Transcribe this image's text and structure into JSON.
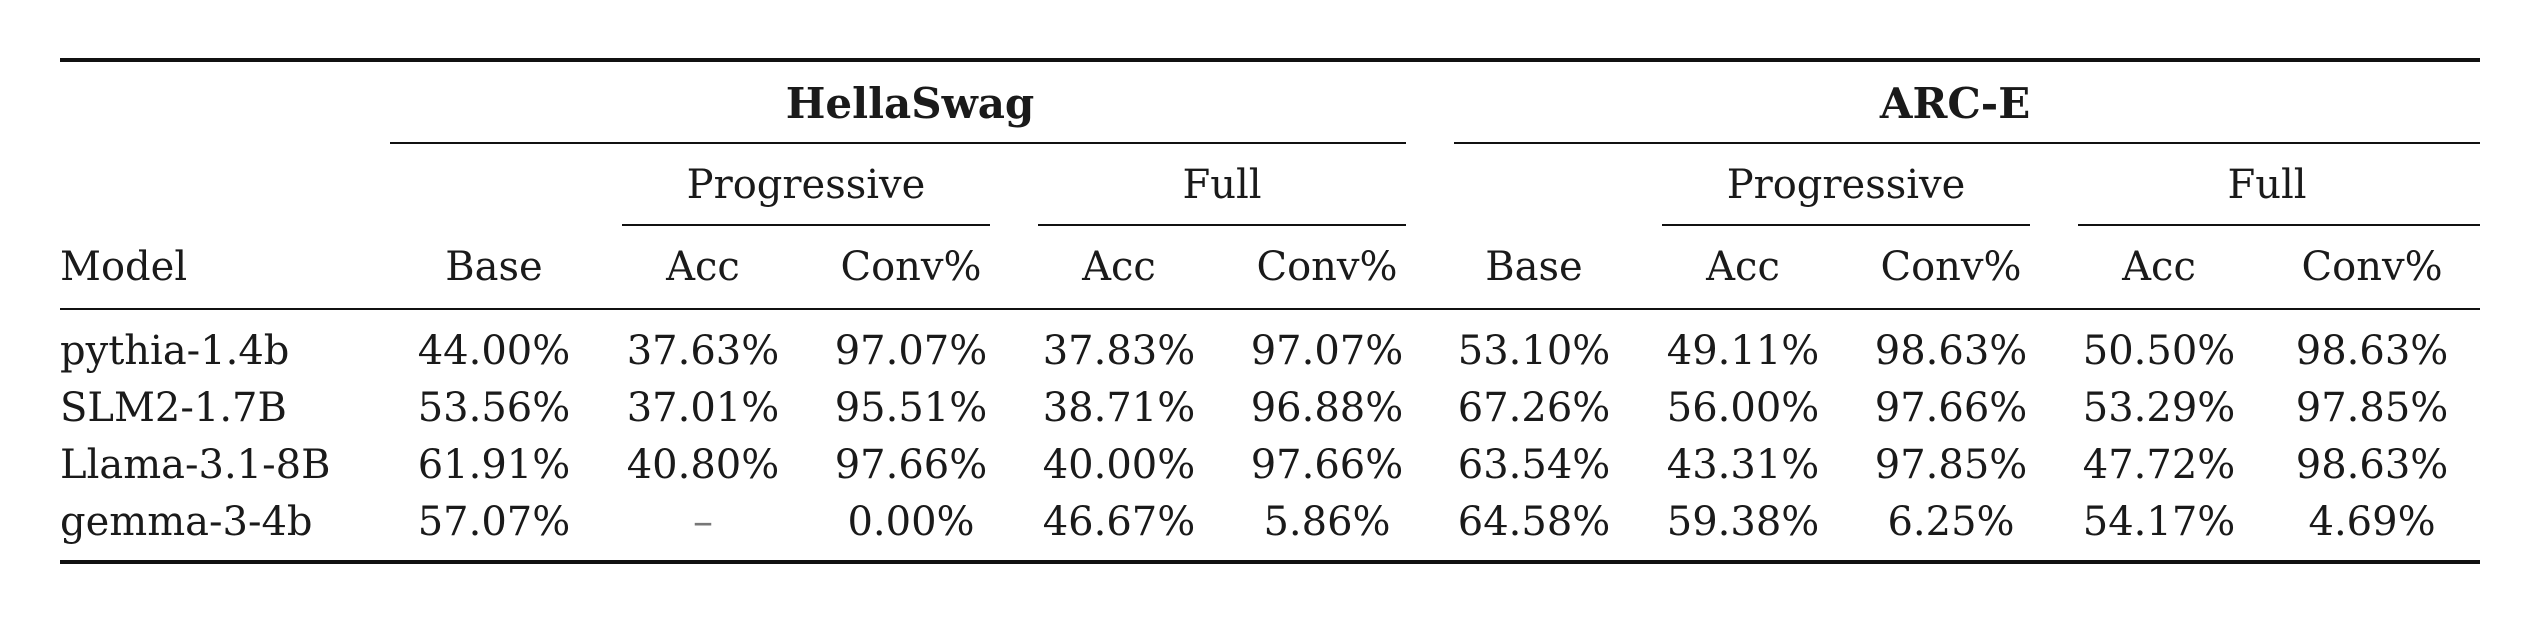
{
  "table": {
    "groups": [
      "HellaSwag",
      "ARC-E"
    ],
    "subgroups": [
      "Progressive",
      "Full"
    ],
    "columns": {
      "model": "Model",
      "base": "Base",
      "acc": "Acc",
      "conv": "Conv%"
    },
    "rows": [
      {
        "model": "pythia-1.4b",
        "hs": [
          "44.00%",
          "37.63%",
          "97.07%",
          "37.83%",
          "97.07%"
        ],
        "arc": [
          "53.10%",
          "49.11%",
          "98.63%",
          "50.50%",
          "98.63%"
        ]
      },
      {
        "model": "SLM2-1.7B",
        "hs": [
          "53.56%",
          "37.01%",
          "95.51%",
          "38.71%",
          "96.88%"
        ],
        "arc": [
          "67.26%",
          "56.00%",
          "97.66%",
          "53.29%",
          "97.85%"
        ]
      },
      {
        "model": "Llama-3.1-8B",
        "hs": [
          "61.91%",
          "40.80%",
          "97.66%",
          "40.00%",
          "97.66%"
        ],
        "arc": [
          "63.54%",
          "43.31%",
          "97.85%",
          "47.72%",
          "98.63%"
        ]
      },
      {
        "model": "gemma-3-4b",
        "hs": [
          "57.07%",
          "–",
          "0.00%",
          "46.67%",
          "5.86%"
        ],
        "arc": [
          "64.58%",
          "59.38%",
          "6.25%",
          "54.17%",
          "4.69%"
        ]
      }
    ]
  }
}
